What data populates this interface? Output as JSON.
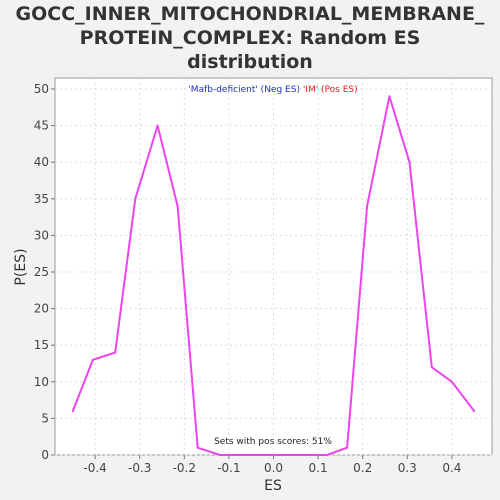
{
  "chart_data": {
    "type": "line",
    "title_lines": [
      "GOCC_INNER_MITOCHONDRIAL_MEMBRANE_",
      "PROTEIN_COMPLEX: Random ES",
      "distribution"
    ],
    "xlabel": "ES",
    "ylabel": "P(ES)",
    "xlim": [
      -0.49,
      0.49
    ],
    "ylim": [
      0,
      51.5
    ],
    "xticks": [
      "-0.4",
      "-0.3",
      "-0.2",
      "-0.1",
      "0.0",
      "0.1",
      "0.2",
      "0.3",
      "0.4"
    ],
    "xtick_values": [
      -0.4,
      -0.3,
      -0.2,
      -0.1,
      0.0,
      0.1,
      0.2,
      0.3,
      0.4
    ],
    "yticks": [
      "0",
      "5",
      "10",
      "15",
      "20",
      "25",
      "30",
      "35",
      "40",
      "45",
      "50"
    ],
    "ytick_values": [
      0,
      5,
      10,
      15,
      20,
      25,
      30,
      35,
      40,
      45,
      50
    ],
    "grid": true,
    "series": [
      {
        "color": "#ee44ee",
        "x": [
          -0.45,
          -0.405,
          -0.355,
          -0.31,
          -0.26,
          -0.215,
          -0.17,
          -0.12,
          -0.07,
          -0.025,
          0.025,
          0.07,
          0.12,
          0.165,
          0.21,
          0.26,
          0.305,
          0.355,
          0.4,
          0.45
        ],
        "y": [
          6,
          13,
          14,
          35,
          45,
          34,
          1,
          0,
          0,
          0,
          0,
          0,
          0,
          1,
          34,
          49,
          40,
          12,
          10,
          6
        ]
      }
    ],
    "legend": {
      "placement": "top-center",
      "neg_text": "'Mafb-deficient' (Neg ES)",
      "neg_color": "#2233bb",
      "pos_text": "'IM' (Pos ES)",
      "pos_color": "#dd2222"
    },
    "annotation": "Sets with pos scores: 51%"
  }
}
